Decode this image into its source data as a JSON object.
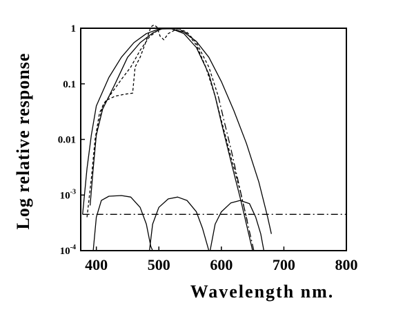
{
  "chart_data": {
    "type": "line",
    "title": "",
    "xlabel": "Wavelength nm.",
    "ylabel": "Log relative response",
    "xlim": [
      375,
      800
    ],
    "ylim_log10": [
      -4,
      0
    ],
    "x_ticks": [
      {
        "value": 400,
        "label": "400"
      },
      {
        "value": 500,
        "label": "500"
      },
      {
        "value": 600,
        "label": "600"
      },
      {
        "value": 700,
        "label": "700"
      },
      {
        "value": 800,
        "label": "800"
      }
    ],
    "y_ticks": [
      {
        "log": 0,
        "label": "1",
        "sup": ""
      },
      {
        "log": -1,
        "label": "0.1",
        "sup": ""
      },
      {
        "log": -2,
        "label": "0.01",
        "sup": ""
      },
      {
        "log": -3,
        "label": "10",
        "sup": "-3"
      },
      {
        "log": -4,
        "label": "10",
        "sup": "-4"
      }
    ],
    "series": [
      {
        "name": "broad-solid-response",
        "style": "solid",
        "points": [
          [
            378,
            0.00045
          ],
          [
            385,
            0.003
          ],
          [
            392,
            0.012
          ],
          [
            400,
            0.04
          ],
          [
            420,
            0.13
          ],
          [
            440,
            0.3
          ],
          [
            460,
            0.55
          ],
          [
            480,
            0.8
          ],
          [
            500,
            0.97
          ],
          [
            520,
            0.98
          ],
          [
            540,
            0.85
          ],
          [
            560,
            0.58
          ],
          [
            580,
            0.3
          ],
          [
            600,
            0.11
          ],
          [
            620,
            0.033
          ],
          [
            640,
            0.0085
          ],
          [
            660,
            0.0017
          ],
          [
            674,
            0.0004
          ],
          [
            680,
            0.0002
          ]
        ]
      },
      {
        "name": "narrow-solid-response",
        "style": "solid",
        "points": [
          [
            390,
            0.00065
          ],
          [
            395,
            0.003
          ],
          [
            400,
            0.012
          ],
          [
            410,
            0.035
          ],
          [
            430,
            0.1
          ],
          [
            450,
            0.3
          ],
          [
            470,
            0.55
          ],
          [
            490,
            0.82
          ],
          [
            505,
            0.98
          ],
          [
            520,
            0.98
          ],
          [
            540,
            0.8
          ],
          [
            560,
            0.45
          ],
          [
            580,
            0.15
          ],
          [
            590,
            0.06
          ],
          [
            600,
            0.02
          ],
          [
            610,
            0.007
          ],
          [
            620,
            0.0025
          ],
          [
            630,
            0.0009
          ],
          [
            640,
            0.0003
          ],
          [
            650,
            0.0001
          ]
        ]
      },
      {
        "name": "dashed-response-a",
        "style": "dashed",
        "points": [
          [
            385,
            0.0004
          ],
          [
            392,
            0.002
          ],
          [
            398,
            0.01
          ],
          [
            405,
            0.03
          ],
          [
            415,
            0.05
          ],
          [
            430,
            0.06
          ],
          [
            445,
            0.065
          ],
          [
            458,
            0.068
          ],
          [
            462,
            0.2
          ],
          [
            470,
            0.3
          ],
          [
            480,
            0.6
          ],
          [
            487,
            1.05
          ],
          [
            492,
            1.15
          ],
          [
            497,
            1.05
          ],
          [
            502,
            0.72
          ],
          [
            508,
            0.62
          ],
          [
            515,
            0.8
          ],
          [
            530,
            0.98
          ],
          [
            545,
            0.82
          ],
          [
            560,
            0.5
          ],
          [
            575,
            0.2
          ],
          [
            590,
            0.06
          ],
          [
            600,
            0.022
          ],
          [
            615,
            0.005
          ],
          [
            630,
            0.0012
          ],
          [
            642,
            0.00032
          ]
        ]
      },
      {
        "name": "dashed-response-b",
        "style": "dashed",
        "points": [
          [
            400,
            0.012
          ],
          [
            410,
            0.04
          ],
          [
            425,
            0.07
          ],
          [
            440,
            0.12
          ],
          [
            455,
            0.2
          ],
          [
            470,
            0.4
          ],
          [
            485,
            0.7
          ],
          [
            500,
            0.95
          ],
          [
            515,
            1.0
          ],
          [
            530,
            1.0
          ],
          [
            545,
            0.85
          ],
          [
            560,
            0.55
          ],
          [
            580,
            0.2
          ],
          [
            595,
            0.06
          ]
        ]
      },
      {
        "name": "dash-dot-baseline",
        "style": "dashdot",
        "points": [
          [
            378,
            0.00045
          ],
          [
            800,
            0.00045
          ]
        ]
      },
      {
        "name": "dash-dot-response",
        "style": "dashdot",
        "points": [
          [
            595,
            0.06
          ],
          [
            605,
            0.02
          ],
          [
            615,
            0.007
          ],
          [
            625,
            0.0022
          ],
          [
            635,
            0.0007
          ],
          [
            645,
            0.00022
          ],
          [
            652,
            0.0001
          ]
        ]
      },
      {
        "name": "low-band-1",
        "style": "solid",
        "points": [
          [
            395,
            0.0001
          ],
          [
            400,
            0.0004
          ],
          [
            408,
            0.0008
          ],
          [
            420,
            0.00095
          ],
          [
            440,
            0.00098
          ],
          [
            455,
            0.00092
          ],
          [
            470,
            0.0006
          ],
          [
            480,
            0.0003
          ],
          [
            487,
            0.00012
          ],
          [
            490,
            0.0001
          ]
        ]
      },
      {
        "name": "low-band-2",
        "style": "solid",
        "points": [
          [
            485,
            0.0001
          ],
          [
            490,
            0.0003
          ],
          [
            500,
            0.0006
          ],
          [
            515,
            0.00085
          ],
          [
            530,
            0.00092
          ],
          [
            545,
            0.0008
          ],
          [
            560,
            0.0005
          ],
          [
            570,
            0.00025
          ],
          [
            580,
            0.0001
          ]
        ]
      },
      {
        "name": "low-band-3",
        "style": "solid",
        "points": [
          [
            582,
            0.0001
          ],
          [
            590,
            0.0003
          ],
          [
            600,
            0.0005
          ],
          [
            615,
            0.00072
          ],
          [
            630,
            0.0008
          ],
          [
            645,
            0.0007
          ],
          [
            655,
            0.0004
          ],
          [
            663,
            0.0002
          ],
          [
            668,
            0.0001
          ]
        ]
      }
    ]
  }
}
